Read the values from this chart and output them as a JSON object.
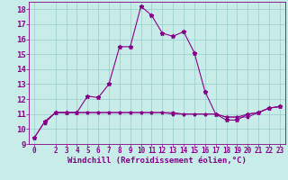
{
  "xlabel": "Windchill (Refroidissement éolien,°C)",
  "xlim": [
    -0.5,
    23.5
  ],
  "ylim": [
    9,
    18.5
  ],
  "yticks": [
    9,
    10,
    11,
    12,
    13,
    14,
    15,
    16,
    17,
    18
  ],
  "xticks": [
    0,
    2,
    3,
    4,
    5,
    6,
    7,
    8,
    9,
    10,
    11,
    12,
    13,
    14,
    15,
    16,
    17,
    18,
    19,
    20,
    21,
    22,
    23
  ],
  "background_color": "#c8ece8",
  "line_color": "#880088",
  "grid_color": "#99cccc",
  "line1_x": [
    0,
    1,
    2,
    3,
    4,
    5,
    6,
    7,
    8,
    9,
    10,
    11,
    12,
    13,
    14,
    15,
    16,
    17,
    18,
    19,
    20,
    21,
    22,
    23
  ],
  "line1_y": [
    9.4,
    10.5,
    11.1,
    11.1,
    11.1,
    12.2,
    12.1,
    13.0,
    15.5,
    15.5,
    18.2,
    17.6,
    16.4,
    16.2,
    16.5,
    15.1,
    12.5,
    11.0,
    10.6,
    10.6,
    11.0,
    11.1,
    11.4,
    11.5
  ],
  "line2_x": [
    0,
    1,
    2,
    3,
    4,
    5,
    6,
    7,
    8,
    9,
    10,
    11,
    12,
    13,
    14,
    15,
    16,
    17,
    18,
    19,
    20,
    21,
    22,
    23
  ],
  "line2_y": [
    9.4,
    10.5,
    11.1,
    11.1,
    11.1,
    11.1,
    11.1,
    11.1,
    11.1,
    11.1,
    11.1,
    11.1,
    11.1,
    11.0,
    11.0,
    11.0,
    11.0,
    11.0,
    10.8,
    10.8,
    11.0,
    11.1,
    11.4,
    11.5
  ],
  "line3_x": [
    1,
    2,
    3,
    4,
    5,
    6,
    7,
    8,
    9,
    10,
    11,
    12,
    13,
    14,
    15,
    16,
    17,
    18,
    19,
    20,
    21,
    22,
    23
  ],
  "line3_y": [
    10.4,
    11.1,
    11.1,
    11.1,
    11.1,
    11.1,
    11.1,
    11.1,
    11.1,
    11.1,
    11.1,
    11.1,
    11.1,
    11.0,
    11.0,
    11.0,
    11.0,
    10.8,
    10.8,
    10.8,
    11.1,
    11.4,
    11.5
  ],
  "font_size_xlabel": 6.5,
  "font_size_yticks": 6.5,
  "font_size_xticks": 5.5
}
